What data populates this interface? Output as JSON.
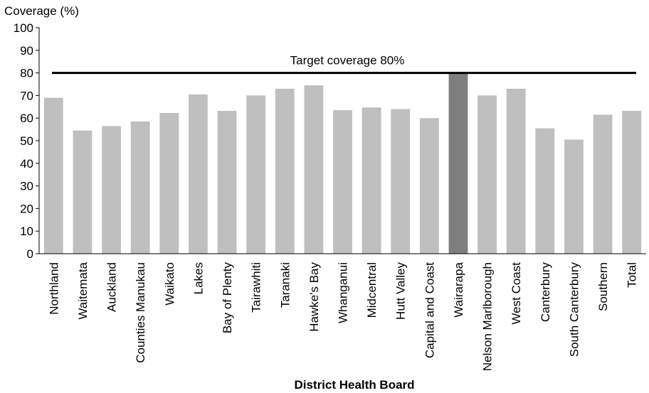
{
  "chart_data": {
    "type": "bar",
    "ylabel": "Coverage  (%)",
    "xlabel": "District Health Board",
    "ylim": [
      0,
      100
    ],
    "yticks": [
      0,
      10,
      20,
      30,
      40,
      50,
      60,
      70,
      80,
      90,
      100
    ],
    "grid": false,
    "legend": "none",
    "categories": [
      "Northland",
      "Waitemata",
      "Auckland",
      "Counties Manukau",
      "Waikato",
      "Lakes",
      "Bay of Plenty",
      "Tairawhiti",
      "Taranaki",
      "Hawke's Bay",
      "Whanganui",
      "Midcentral",
      "Hutt Valley",
      "Capital and Coast",
      "Wairarapa",
      "Nelson Marlborough",
      "West Coast",
      "Canterbury",
      "South Canterbury",
      "Southern",
      "Total"
    ],
    "values": [
      69,
      54.5,
      56.5,
      58.5,
      62.3,
      70.5,
      63.2,
      70,
      73,
      74.5,
      63.5,
      64.7,
      64,
      60,
      80,
      70,
      73,
      55.5,
      50.5,
      61.5,
      63.2
    ],
    "highlight_category": "Wairarapa",
    "bar_color": "#bfbfbf",
    "highlight_color": "#7f7f7f",
    "target": {
      "value": 80,
      "label": "Target coverage  80%",
      "color": "#000000"
    }
  }
}
